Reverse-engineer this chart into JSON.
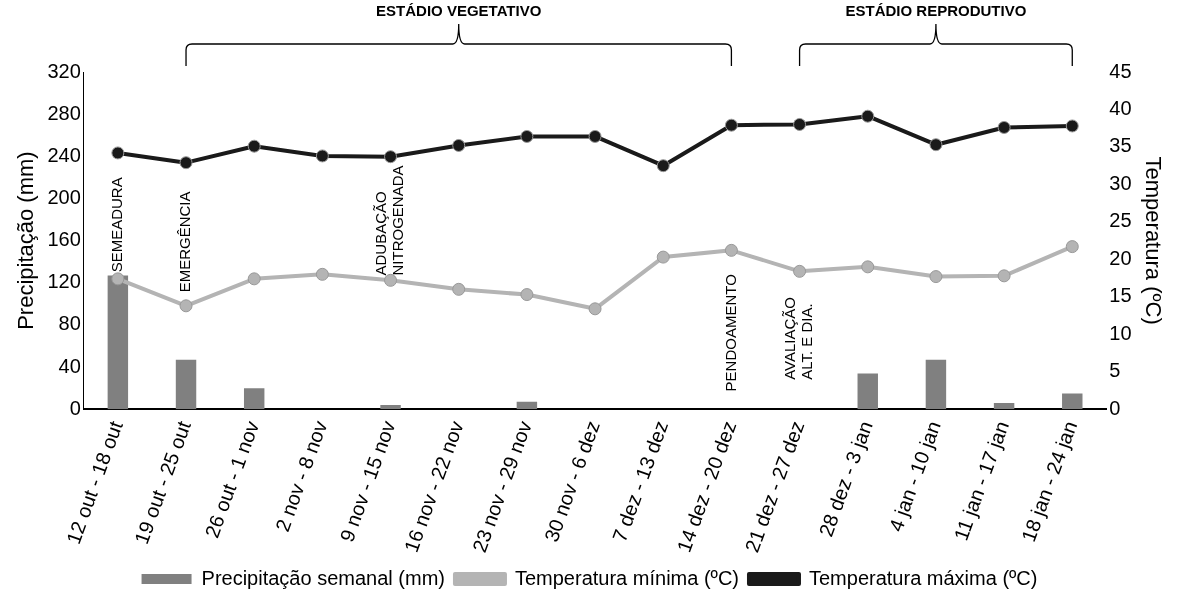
{
  "chart_data": {
    "type": "bar",
    "categories": [
      "12 out - 18 out",
      "19 out - 25 out",
      "26 out - 1 nov",
      "2 nov - 8 nov",
      "9 nov - 15 nov",
      "16 nov - 22 nov",
      "23 nov - 29 nov",
      "30 nov - 6 dez",
      "7 dez - 13 dez",
      "14 dez - 20 dez",
      "21 dez - 27 dez",
      "28 dez - 3 jan",
      "4 jan - 10 jan",
      "11 jan - 17 jan",
      "18 jan - 24 jan"
    ],
    "series": [
      {
        "name": "Precipitação semanal (mm)",
        "color": "#808080",
        "values": [
          127,
          47,
          20,
          0,
          4,
          0,
          7,
          0,
          0,
          0,
          0,
          34,
          47,
          6,
          15
        ]
      },
      {
        "name": "Temperatura mínima (ºC)",
        "type": "line",
        "axis": "y2",
        "color": "#b4b4b4",
        "values": [
          17.4,
          13.8,
          17.4,
          18.0,
          17.2,
          16.0,
          15.3,
          13.4,
          20.3,
          21.2,
          18.4,
          19.0,
          17.7,
          17.8,
          21.7
        ]
      },
      {
        "name": "Temperatura máxima (ºC)",
        "type": "line",
        "axis": "y2",
        "color": "#1a1a1a",
        "values": [
          34.2,
          32.9,
          35.1,
          33.8,
          33.7,
          35.2,
          36.4,
          36.4,
          32.5,
          37.9,
          38.0,
          39.1,
          35.3,
          37.6,
          37.8
        ]
      }
    ],
    "ylabel": "Precipitação (mm)",
    "y2label": "Temperatura (ºC)",
    "ylim": [
      0,
      320
    ],
    "yticks": [
      0,
      40,
      80,
      120,
      160,
      200,
      240,
      280,
      320
    ],
    "y2lim": [
      0,
      45
    ],
    "y2ticks": [
      0,
      5,
      10,
      15,
      20,
      25,
      30,
      35,
      40,
      45
    ],
    "annotations": [
      "ESTÁDIO VEGETATIVO",
      "ESTÁDIO REPRODUTIVO",
      "SEMEADURA",
      "EMERGÊNCIA",
      "ADUBAÇÃO\nNITROGENADA",
      "PENDOAMENTO",
      "AVALIAÇÃO\nALT. E DIA."
    ],
    "marker": "circle",
    "grid": false,
    "legend": "bottom"
  }
}
